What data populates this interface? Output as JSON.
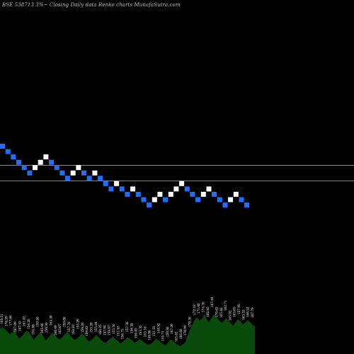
{
  "chart_data": {
    "type": "renko",
    "title": "BSE 538713 3%~  Closing Daily data  Renko  charts MunafaSutra.com",
    "colors": {
      "background": "#000000",
      "up_brick": "#ffffff",
      "down_brick": "#1e6fff",
      "reference_line": "#b8860b",
      "volume_area": "#0a4a0a",
      "volume_label": "#ffffff"
    },
    "bricks": [
      {
        "dir": "down",
        "col": 0,
        "row": 0
      },
      {
        "dir": "down",
        "col": 1,
        "row": 1
      },
      {
        "dir": "down",
        "col": 2,
        "row": 2
      },
      {
        "dir": "down",
        "col": 3,
        "row": 3
      },
      {
        "dir": "down",
        "col": 4,
        "row": 4
      },
      {
        "dir": "down",
        "col": 5,
        "row": 5
      },
      {
        "dir": "up",
        "col": 6,
        "row": 4
      },
      {
        "dir": "up",
        "col": 7,
        "row": 3
      },
      {
        "dir": "up",
        "col": 8,
        "row": 2
      },
      {
        "dir": "down",
        "col": 9,
        "row": 3
      },
      {
        "dir": "down",
        "col": 10,
        "row": 4
      },
      {
        "dir": "down",
        "col": 11,
        "row": 5
      },
      {
        "dir": "down",
        "col": 12,
        "row": 6
      },
      {
        "dir": "up",
        "col": 13,
        "row": 5
      },
      {
        "dir": "up",
        "col": 14,
        "row": 4
      },
      {
        "dir": "down",
        "col": 15,
        "row": 5
      },
      {
        "dir": "down",
        "col": 16,
        "row": 6
      },
      {
        "dir": "up",
        "col": 17,
        "row": 5
      },
      {
        "dir": "down",
        "col": 18,
        "row": 6
      },
      {
        "dir": "down",
        "col": 19,
        "row": 7
      },
      {
        "dir": "down",
        "col": 20,
        "row": 8
      },
      {
        "dir": "up",
        "col": 21,
        "row": 7
      },
      {
        "dir": "down",
        "col": 22,
        "row": 8
      },
      {
        "dir": "down",
        "col": 23,
        "row": 9
      },
      {
        "dir": "up",
        "col": 24,
        "row": 8
      },
      {
        "dir": "down",
        "col": 25,
        "row": 9
      },
      {
        "dir": "down",
        "col": 26,
        "row": 10
      },
      {
        "dir": "down",
        "col": 27,
        "row": 11
      },
      {
        "dir": "up",
        "col": 28,
        "row": 10
      },
      {
        "dir": "up",
        "col": 29,
        "row": 9
      },
      {
        "dir": "down",
        "col": 30,
        "row": 10
      },
      {
        "dir": "up",
        "col": 31,
        "row": 9
      },
      {
        "dir": "up",
        "col": 32,
        "row": 8
      },
      {
        "dir": "up",
        "col": 33,
        "row": 7
      },
      {
        "dir": "down",
        "col": 34,
        "row": 8
      },
      {
        "dir": "down",
        "col": 35,
        "row": 9
      },
      {
        "dir": "down",
        "col": 36,
        "row": 10
      },
      {
        "dir": "up",
        "col": 37,
        "row": 9
      },
      {
        "dir": "up",
        "col": 38,
        "row": 8
      },
      {
        "dir": "down",
        "col": 39,
        "row": 9
      },
      {
        "dir": "down",
        "col": 40,
        "row": 10
      },
      {
        "dir": "down",
        "col": 41,
        "row": 11
      },
      {
        "dir": "up",
        "col": 42,
        "row": 10
      },
      {
        "dir": "up",
        "col": 43,
        "row": 9
      },
      {
        "dir": "down",
        "col": 44,
        "row": 10
      },
      {
        "dir": "down",
        "col": 45,
        "row": 11
      }
    ],
    "reference_lines": [
      1,
      2
    ],
    "volume_labels": [
      "105.21",
      "176.29",
      "177.96",
      "167.09",
      "167.45",
      "161.03",
      "154.28",
      "154.80",
      "159.38",
      "165.46",
      "156.30",
      "163.38",
      "160.49",
      "163.07",
      "159.08",
      "157.78",
      "158.83",
      "155.29",
      "156.26",
      "159.83",
      "155.20",
      "155.84",
      "160.25",
      "157.94",
      "155.87",
      "153.56",
      "151.43",
      "156.75",
      "157.38",
      "156.38",
      "156.85",
      "153.35",
      "153.16",
      "149.96",
      "151.53",
      "149.92",
      "155.71",
      "150.88",
      "167.20",
      "165.62",
      "166.66",
      "170.99",
      "170.36",
      "172.18",
      "171.40",
      "174.78",
      "168.85",
      "167.44",
      "170.62",
      "165.82",
      "162.71",
      "165.02",
      "163.05",
      "157.95",
      "163.52",
      "166.52",
      "167.79"
    ],
    "volume_profile": [
      36,
      38,
      35,
      32,
      28,
      30,
      34,
      27,
      22,
      25,
      29,
      33,
      31,
      26,
      20,
      24,
      28,
      31,
      25,
      19,
      23,
      27,
      30,
      26,
      22,
      21,
      24,
      28,
      32,
      27,
      23,
      20,
      22,
      25,
      29,
      26,
      21,
      18,
      20,
      23,
      27,
      24,
      20,
      17,
      16,
      19,
      22,
      25,
      21,
      18,
      15,
      17,
      20,
      24,
      22,
      19,
      16,
      18,
      21,
      19,
      16,
      14,
      13,
      15,
      18,
      22,
      19,
      16,
      14,
      12,
      17,
      21,
      18,
      15,
      13,
      11,
      14,
      16,
      26,
      34,
      42,
      48,
      52,
      47,
      50,
      55,
      49,
      45,
      51,
      56,
      53,
      48,
      44,
      46,
      51,
      47,
      43,
      40,
      45,
      49,
      46,
      42,
      44,
      48,
      45,
      41,
      39
    ]
  }
}
